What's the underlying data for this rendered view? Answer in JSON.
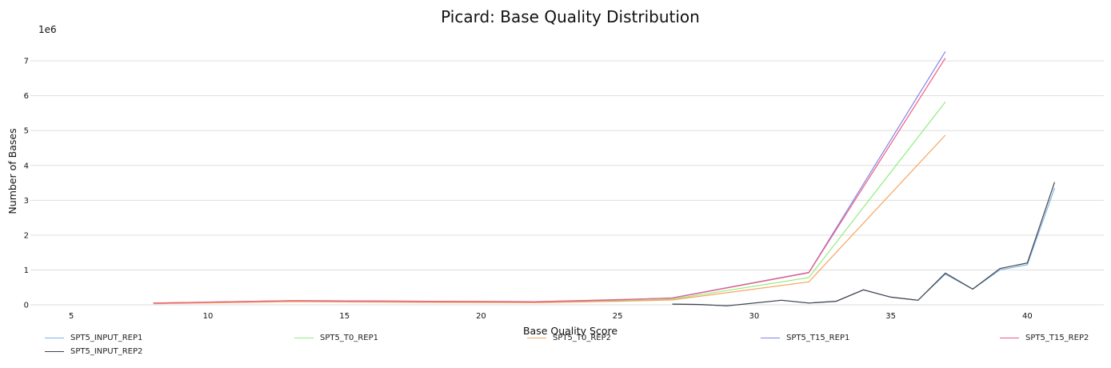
{
  "chart_data": {
    "type": "line",
    "title": "Picard: Base Quality Distribution",
    "xlabel": "Base Quality Score",
    "ylabel": "Number of Bases",
    "y_offset_label": "1e6",
    "xlim": [
      3.5,
      42.8
    ],
    "ylim": [
      0,
      7.6
    ],
    "x_ticks": [
      5,
      10,
      15,
      20,
      25,
      30,
      35,
      40
    ],
    "y_ticks": [
      0,
      1,
      2,
      3,
      4,
      5,
      6,
      7
    ],
    "grid": "horizontal",
    "legend_position": "bottom",
    "series": [
      {
        "name": "SPT5_INPUT_REP1",
        "color": "#7cb5ec",
        "points": [
          [
            27,
            0.02
          ],
          [
            28,
            0.01
          ],
          [
            29,
            -0.03
          ],
          [
            30,
            0.05
          ],
          [
            31,
            0.13
          ],
          [
            32,
            0.05
          ],
          [
            33,
            0.1
          ],
          [
            34,
            0.43
          ],
          [
            35,
            0.22
          ],
          [
            36,
            0.13
          ],
          [
            37,
            0.88
          ],
          [
            38,
            0.45
          ],
          [
            39,
            1.0
          ],
          [
            40,
            1.15
          ],
          [
            41,
            3.35
          ]
        ]
      },
      {
        "name": "SPT5_INPUT_REP2",
        "color": "#434348",
        "points": [
          [
            27,
            0.02
          ],
          [
            28,
            0.01
          ],
          [
            29,
            -0.03
          ],
          [
            30,
            0.05
          ],
          [
            31,
            0.13
          ],
          [
            32,
            0.05
          ],
          [
            33,
            0.1
          ],
          [
            34,
            0.43
          ],
          [
            35,
            0.22
          ],
          [
            36,
            0.13
          ],
          [
            37,
            0.91
          ],
          [
            38,
            0.45
          ],
          [
            39,
            1.04
          ],
          [
            40,
            1.2
          ],
          [
            41,
            3.52
          ]
        ]
      },
      {
        "name": "SPT5_T0_REP1",
        "color": "#90ed7d",
        "points": [
          [
            8,
            0.04
          ],
          [
            13,
            0.1
          ],
          [
            18,
            0.08
          ],
          [
            22,
            0.07
          ],
          [
            25,
            0.12
          ],
          [
            27,
            0.16
          ],
          [
            32,
            0.78
          ],
          [
            37,
            5.82
          ]
        ]
      },
      {
        "name": "SPT5_T0_REP2",
        "color": "#f7a35c",
        "points": [
          [
            8,
            0.03
          ],
          [
            13,
            0.09
          ],
          [
            18,
            0.07
          ],
          [
            22,
            0.06
          ],
          [
            25,
            0.1
          ],
          [
            27,
            0.14
          ],
          [
            32,
            0.66
          ],
          [
            37,
            4.87
          ]
        ]
      },
      {
        "name": "SPT5_T15_REP1",
        "color": "#8085e9",
        "points": [
          [
            8,
            0.05
          ],
          [
            13,
            0.12
          ],
          [
            18,
            0.1
          ],
          [
            22,
            0.09
          ],
          [
            25,
            0.14
          ],
          [
            27,
            0.2
          ],
          [
            32,
            0.93
          ],
          [
            37,
            7.27
          ]
        ]
      },
      {
        "name": "SPT5_T15_REP2",
        "color": "#f15c80",
        "points": [
          [
            8,
            0.05
          ],
          [
            13,
            0.12
          ],
          [
            18,
            0.1
          ],
          [
            22,
            0.09
          ],
          [
            25,
            0.15
          ],
          [
            27,
            0.19
          ],
          [
            32,
            0.92
          ],
          [
            37,
            7.08
          ]
        ]
      }
    ]
  }
}
